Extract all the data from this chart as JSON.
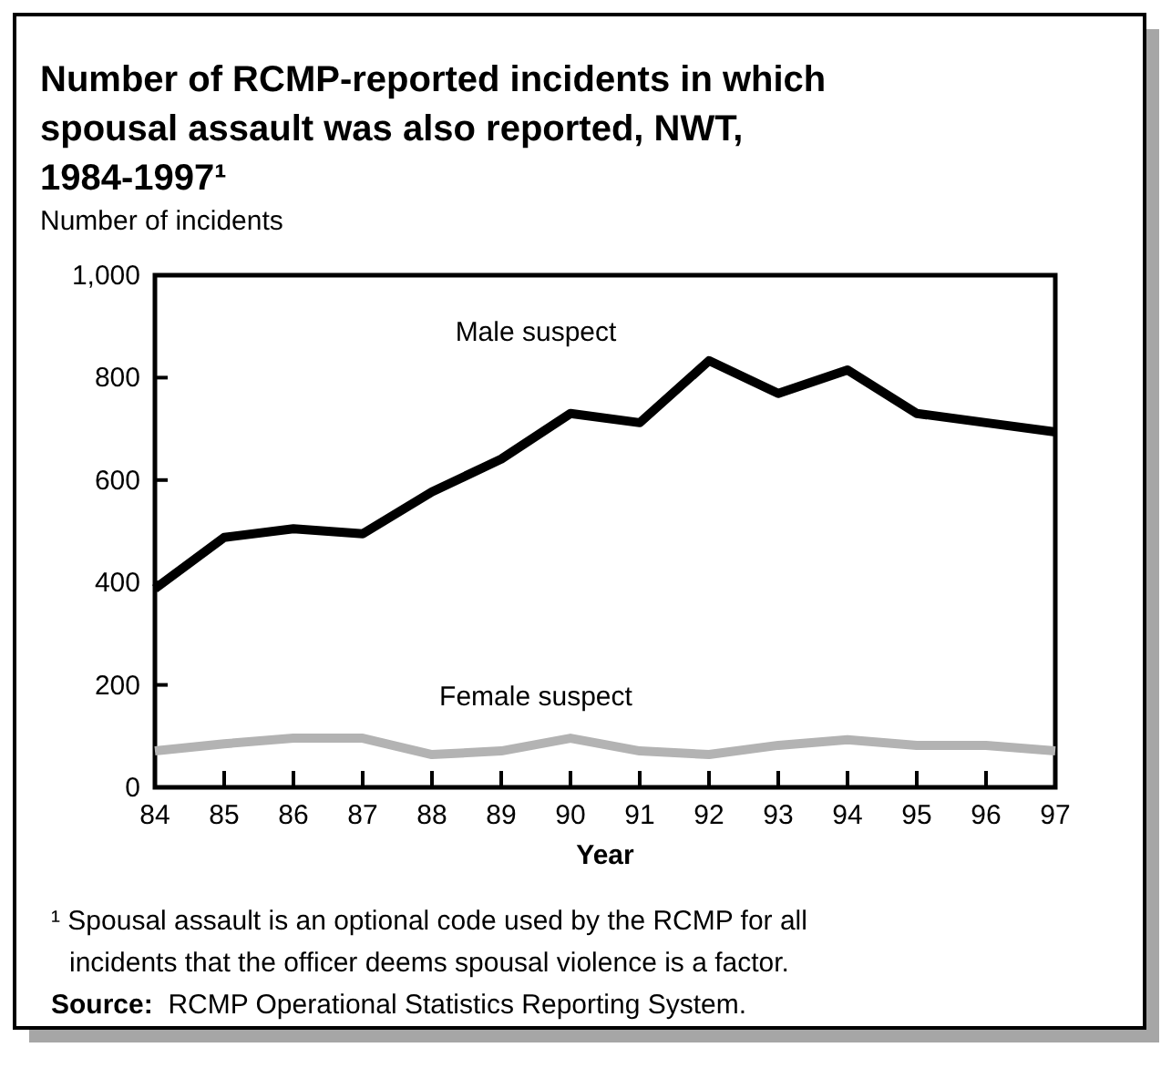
{
  "chart_data": {
    "type": "line",
    "title": "Number of RCMP-reported incidents in which spousal assault was also reported, NWT, 1984-1997¹",
    "xlabel": "Year",
    "ylabel": "Number of incidents",
    "x": [
      84,
      85,
      86,
      87,
      88,
      89,
      90,
      91,
      92,
      93,
      94,
      95,
      96,
      97
    ],
    "xlim": [
      84,
      97
    ],
    "xticks": [
      84,
      85,
      86,
      87,
      88,
      89,
      90,
      91,
      92,
      93,
      94,
      95,
      96,
      97
    ],
    "ylim": [
      0,
      1000
    ],
    "yticks": [
      0,
      200,
      400,
      600,
      800,
      {
        "value": 1000,
        "label": "1,000"
      }
    ],
    "series": [
      {
        "name": "Male suspect",
        "color": "#000000",
        "values": [
          388,
          488,
          505,
          495,
          577,
          641,
          730,
          712,
          833,
          769,
          815,
          730,
          712,
          694
        ]
      },
      {
        "name": "Female suspect",
        "color": "#b3b3b3",
        "values": [
          71,
          85,
          96,
          96,
          64,
          71,
          96,
          71,
          64,
          82,
          93,
          82,
          82,
          71
        ]
      }
    ],
    "grid": false,
    "marker": "none",
    "line_style": "solid",
    "annotations": [
      "¹ Spousal assault is an optional code used by the RCMP for all incidents that the officer deems spousal violence is a factor.",
      "Source:  RCMP Operational Statistics Reporting System."
    ]
  }
}
